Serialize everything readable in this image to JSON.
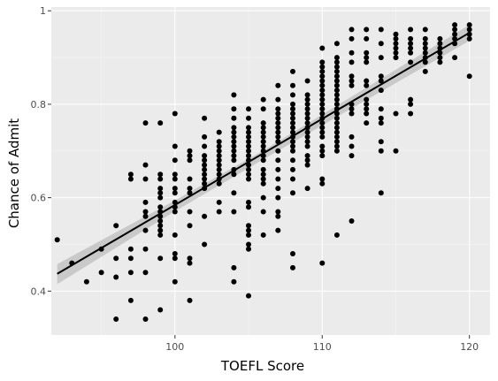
{
  "chart_data": {
    "type": "scatter",
    "title": "",
    "xlabel": "TOEFL Score",
    "ylabel": "Chance of Admit",
    "xlim": [
      91.6,
      121.4
    ],
    "ylim": [
      0.306,
      1.008
    ],
    "x_ticks": [
      100,
      110,
      120
    ],
    "x_tick_labels": [
      "100",
      "110",
      "120"
    ],
    "y_ticks": [
      0.4,
      0.6,
      0.8,
      1.0
    ],
    "y_tick_labels": [
      "0.4",
      "0.6",
      "0.8",
      "1"
    ],
    "grid": true,
    "legend": "none",
    "colors": {
      "panel_background": "#ebebeb",
      "grid_major": "#ffffff",
      "grid_minor": "#f5f5f5",
      "points": "#000000",
      "trend_line": "#000000",
      "confidence_band": "#bdbdbd"
    },
    "trend_line": {
      "x": [
        92,
        120
      ],
      "y": [
        0.437,
        0.953
      ]
    },
    "confidence_band": {
      "x": [
        92,
        100,
        106,
        110,
        120
      ],
      "upper": [
        0.458,
        0.594,
        0.701,
        0.778,
        0.97
      ],
      "lower": [
        0.415,
        0.571,
        0.682,
        0.755,
        0.936
      ]
    },
    "points": [
      [
        92,
        0.51
      ],
      [
        93,
        0.46
      ],
      [
        94,
        0.42
      ],
      [
        95,
        0.49
      ],
      [
        95,
        0.44
      ],
      [
        96,
        0.54
      ],
      [
        96,
        0.47
      ],
      [
        96,
        0.43
      ],
      [
        96,
        0.34
      ],
      [
        97,
        0.65
      ],
      [
        97,
        0.64
      ],
      [
        97,
        0.49
      ],
      [
        97,
        0.47
      ],
      [
        97,
        0.44
      ],
      [
        97,
        0.38
      ],
      [
        98,
        0.76
      ],
      [
        98,
        0.67
      ],
      [
        98,
        0.64
      ],
      [
        98,
        0.59
      ],
      [
        98,
        0.57
      ],
      [
        98,
        0.56
      ],
      [
        98,
        0.53
      ],
      [
        98,
        0.49
      ],
      [
        98,
        0.44
      ],
      [
        98,
        0.34
      ],
      [
        99,
        0.76
      ],
      [
        99,
        0.65
      ],
      [
        99,
        0.64
      ],
      [
        99,
        0.62
      ],
      [
        99,
        0.61
      ],
      [
        99,
        0.6
      ],
      [
        99,
        0.58
      ],
      [
        99,
        0.57
      ],
      [
        99,
        0.56
      ],
      [
        99,
        0.55
      ],
      [
        99,
        0.54
      ],
      [
        99,
        0.53
      ],
      [
        99,
        0.52
      ],
      [
        99,
        0.47
      ],
      [
        99,
        0.36
      ],
      [
        100,
        0.78
      ],
      [
        100,
        0.71
      ],
      [
        100,
        0.68
      ],
      [
        100,
        0.65
      ],
      [
        100,
        0.64
      ],
      [
        100,
        0.62
      ],
      [
        100,
        0.61
      ],
      [
        100,
        0.59
      ],
      [
        100,
        0.58
      ],
      [
        100,
        0.57
      ],
      [
        100,
        0.52
      ],
      [
        100,
        0.48
      ],
      [
        100,
        0.47
      ],
      [
        100,
        0.42
      ],
      [
        101,
        0.7
      ],
      [
        101,
        0.69
      ],
      [
        101,
        0.68
      ],
      [
        101,
        0.64
      ],
      [
        101,
        0.62
      ],
      [
        101,
        0.61
      ],
      [
        101,
        0.57
      ],
      [
        101,
        0.54
      ],
      [
        101,
        0.47
      ],
      [
        101,
        0.46
      ],
      [
        101,
        0.38
      ],
      [
        102,
        0.77
      ],
      [
        102,
        0.73
      ],
      [
        102,
        0.71
      ],
      [
        102,
        0.69
      ],
      [
        102,
        0.68
      ],
      [
        102,
        0.67
      ],
      [
        102,
        0.66
      ],
      [
        102,
        0.65
      ],
      [
        102,
        0.64
      ],
      [
        102,
        0.63
      ],
      [
        102,
        0.62
      ],
      [
        102,
        0.56
      ],
      [
        102,
        0.5
      ],
      [
        103,
        0.74
      ],
      [
        103,
        0.72
      ],
      [
        103,
        0.71
      ],
      [
        103,
        0.7
      ],
      [
        103,
        0.69
      ],
      [
        103,
        0.68
      ],
      [
        103,
        0.67
      ],
      [
        103,
        0.66
      ],
      [
        103,
        0.65
      ],
      [
        103,
        0.64
      ],
      [
        103,
        0.63
      ],
      [
        103,
        0.59
      ],
      [
        103,
        0.57
      ],
      [
        104,
        0.82
      ],
      [
        104,
        0.79
      ],
      [
        104,
        0.77
      ],
      [
        104,
        0.75
      ],
      [
        104,
        0.74
      ],
      [
        104,
        0.73
      ],
      [
        104,
        0.72
      ],
      [
        104,
        0.71
      ],
      [
        104,
        0.7
      ],
      [
        104,
        0.69
      ],
      [
        104,
        0.68
      ],
      [
        104,
        0.66
      ],
      [
        104,
        0.65
      ],
      [
        104,
        0.61
      ],
      [
        104,
        0.57
      ],
      [
        104,
        0.45
      ],
      [
        104,
        0.42
      ],
      [
        105,
        0.79
      ],
      [
        105,
        0.77
      ],
      [
        105,
        0.75
      ],
      [
        105,
        0.74
      ],
      [
        105,
        0.73
      ],
      [
        105,
        0.72
      ],
      [
        105,
        0.71
      ],
      [
        105,
        0.7
      ],
      [
        105,
        0.69
      ],
      [
        105,
        0.68
      ],
      [
        105,
        0.67
      ],
      [
        105,
        0.66
      ],
      [
        105,
        0.65
      ],
      [
        105,
        0.64
      ],
      [
        105,
        0.59
      ],
      [
        105,
        0.58
      ],
      [
        105,
        0.54
      ],
      [
        105,
        0.53
      ],
      [
        105,
        0.52
      ],
      [
        105,
        0.5
      ],
      [
        105,
        0.49
      ],
      [
        105,
        0.39
      ],
      [
        106,
        0.81
      ],
      [
        106,
        0.79
      ],
      [
        106,
        0.76
      ],
      [
        106,
        0.75
      ],
      [
        106,
        0.74
      ],
      [
        106,
        0.73
      ],
      [
        106,
        0.72
      ],
      [
        106,
        0.71
      ],
      [
        106,
        0.7
      ],
      [
        106,
        0.69
      ],
      [
        106,
        0.68
      ],
      [
        106,
        0.66
      ],
      [
        106,
        0.65
      ],
      [
        106,
        0.64
      ],
      [
        106,
        0.63
      ],
      [
        106,
        0.6
      ],
      [
        106,
        0.57
      ],
      [
        106,
        0.52
      ],
      [
        107,
        0.84
      ],
      [
        107,
        0.81
      ],
      [
        107,
        0.79
      ],
      [
        107,
        0.78
      ],
      [
        107,
        0.77
      ],
      [
        107,
        0.76
      ],
      [
        107,
        0.75
      ],
      [
        107,
        0.74
      ],
      [
        107,
        0.73
      ],
      [
        107,
        0.72
      ],
      [
        107,
        0.7
      ],
      [
        107,
        0.68
      ],
      [
        107,
        0.66
      ],
      [
        107,
        0.64
      ],
      [
        107,
        0.62
      ],
      [
        107,
        0.6
      ],
      [
        107,
        0.57
      ],
      [
        107,
        0.56
      ],
      [
        107,
        0.53
      ],
      [
        108,
        0.87
      ],
      [
        108,
        0.84
      ],
      [
        108,
        0.82
      ],
      [
        108,
        0.8
      ],
      [
        108,
        0.79
      ],
      [
        108,
        0.78
      ],
      [
        108,
        0.77
      ],
      [
        108,
        0.76
      ],
      [
        108,
        0.75
      ],
      [
        108,
        0.74
      ],
      [
        108,
        0.73
      ],
      [
        108,
        0.72
      ],
      [
        108,
        0.71
      ],
      [
        108,
        0.7
      ],
      [
        108,
        0.68
      ],
      [
        108,
        0.66
      ],
      [
        108,
        0.64
      ],
      [
        108,
        0.61
      ],
      [
        108,
        0.48
      ],
      [
        108,
        0.45
      ],
      [
        109,
        0.85
      ],
      [
        109,
        0.82
      ],
      [
        109,
        0.81
      ],
      [
        109,
        0.8
      ],
      [
        109,
        0.79
      ],
      [
        109,
        0.78
      ],
      [
        109,
        0.77
      ],
      [
        109,
        0.76
      ],
      [
        109,
        0.75
      ],
      [
        109,
        0.74
      ],
      [
        109,
        0.73
      ],
      [
        109,
        0.72
      ],
      [
        109,
        0.71
      ],
      [
        109,
        0.69
      ],
      [
        109,
        0.68
      ],
      [
        109,
        0.67
      ],
      [
        109,
        0.62
      ],
      [
        110,
        0.92
      ],
      [
        110,
        0.89
      ],
      [
        110,
        0.88
      ],
      [
        110,
        0.87
      ],
      [
        110,
        0.86
      ],
      [
        110,
        0.85
      ],
      [
        110,
        0.84
      ],
      [
        110,
        0.83
      ],
      [
        110,
        0.82
      ],
      [
        110,
        0.81
      ],
      [
        110,
        0.8
      ],
      [
        110,
        0.79
      ],
      [
        110,
        0.78
      ],
      [
        110,
        0.77
      ],
      [
        110,
        0.76
      ],
      [
        110,
        0.75
      ],
      [
        110,
        0.74
      ],
      [
        110,
        0.73
      ],
      [
        110,
        0.71
      ],
      [
        110,
        0.7
      ],
      [
        110,
        0.69
      ],
      [
        110,
        0.64
      ],
      [
        110,
        0.63
      ],
      [
        110,
        0.46
      ],
      [
        111,
        0.93
      ],
      [
        111,
        0.9
      ],
      [
        111,
        0.89
      ],
      [
        111,
        0.88
      ],
      [
        111,
        0.87
      ],
      [
        111,
        0.86
      ],
      [
        111,
        0.85
      ],
      [
        111,
        0.84
      ],
      [
        111,
        0.83
      ],
      [
        111,
        0.82
      ],
      [
        111,
        0.81
      ],
      [
        111,
        0.8
      ],
      [
        111,
        0.79
      ],
      [
        111,
        0.78
      ],
      [
        111,
        0.77
      ],
      [
        111,
        0.76
      ],
      [
        111,
        0.75
      ],
      [
        111,
        0.74
      ],
      [
        111,
        0.73
      ],
      [
        111,
        0.72
      ],
      [
        111,
        0.71
      ],
      [
        111,
        0.7
      ],
      [
        111,
        0.52
      ],
      [
        112,
        0.96
      ],
      [
        112,
        0.94
      ],
      [
        112,
        0.91
      ],
      [
        112,
        0.89
      ],
      [
        112,
        0.86
      ],
      [
        112,
        0.85
      ],
      [
        112,
        0.84
      ],
      [
        112,
        0.8
      ],
      [
        112,
        0.79
      ],
      [
        112,
        0.78
      ],
      [
        112,
        0.73
      ],
      [
        112,
        0.71
      ],
      [
        112,
        0.69
      ],
      [
        112,
        0.55
      ],
      [
        113,
        0.96
      ],
      [
        113,
        0.94
      ],
      [
        113,
        0.91
      ],
      [
        113,
        0.9
      ],
      [
        113,
        0.89
      ],
      [
        113,
        0.85
      ],
      [
        113,
        0.84
      ],
      [
        113,
        0.81
      ],
      [
        113,
        0.8
      ],
      [
        113,
        0.79
      ],
      [
        113,
        0.78
      ],
      [
        113,
        0.76
      ],
      [
        114,
        0.96
      ],
      [
        114,
        0.93
      ],
      [
        114,
        0.9
      ],
      [
        114,
        0.86
      ],
      [
        114,
        0.85
      ],
      [
        114,
        0.83
      ],
      [
        114,
        0.79
      ],
      [
        114,
        0.77
      ],
      [
        114,
        0.76
      ],
      [
        114,
        0.72
      ],
      [
        114,
        0.7
      ],
      [
        114,
        0.61
      ],
      [
        115,
        0.95
      ],
      [
        115,
        0.94
      ],
      [
        115,
        0.93
      ],
      [
        115,
        0.92
      ],
      [
        115,
        0.91
      ],
      [
        115,
        0.9
      ],
      [
        115,
        0.78
      ],
      [
        115,
        0.7
      ],
      [
        116,
        0.96
      ],
      [
        116,
        0.94
      ],
      [
        116,
        0.93
      ],
      [
        116,
        0.92
      ],
      [
        116,
        0.91
      ],
      [
        116,
        0.89
      ],
      [
        116,
        0.81
      ],
      [
        116,
        0.8
      ],
      [
        116,
        0.78
      ],
      [
        117,
        0.96
      ],
      [
        117,
        0.94
      ],
      [
        117,
        0.93
      ],
      [
        117,
        0.92
      ],
      [
        117,
        0.91
      ],
      [
        117,
        0.9
      ],
      [
        117,
        0.89
      ],
      [
        117,
        0.87
      ],
      [
        118,
        0.94
      ],
      [
        118,
        0.93
      ],
      [
        118,
        0.92
      ],
      [
        118,
        0.91
      ],
      [
        118,
        0.9
      ],
      [
        118,
        0.89
      ],
      [
        119,
        0.97
      ],
      [
        119,
        0.96
      ],
      [
        119,
        0.95
      ],
      [
        119,
        0.94
      ],
      [
        119,
        0.93
      ],
      [
        119,
        0.9
      ],
      [
        120,
        0.97
      ],
      [
        120,
        0.96
      ],
      [
        120,
        0.95
      ],
      [
        120,
        0.94
      ],
      [
        120,
        0.86
      ]
    ]
  }
}
